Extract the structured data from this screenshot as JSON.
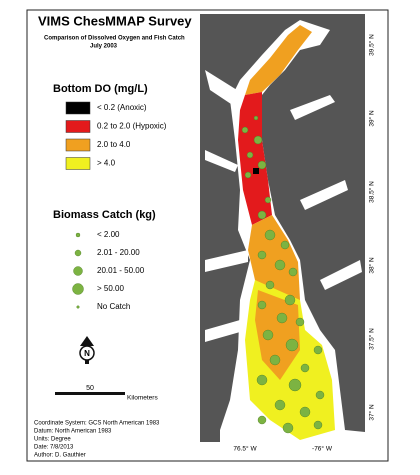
{
  "header": {
    "title": "VIMS ChesMMAP Survey",
    "subtitle": [
      "Comparison of Dissolved Oxygen and Fish Catch",
      "July 2003"
    ]
  },
  "do_legend": {
    "title": "Bottom DO (mg/L)",
    "items": [
      {
        "label": "< 0.2 (Anoxic)",
        "color": "#000000"
      },
      {
        "label": "0.2 to 2.0 (Hypoxic)",
        "color": "#e31a1c"
      },
      {
        "label": "2.0 to 4.0",
        "color": "#f0a020"
      },
      {
        "label": "> 4.0",
        "color": "#f0f020"
      }
    ]
  },
  "catch_legend": {
    "title": "Biomass Catch (kg)",
    "color": "#7cb342",
    "items": [
      "< 2.00",
      "2.01 - 20.00",
      "20.01 - 50.00",
      "> 50.00",
      "No Catch"
    ]
  },
  "scale": {
    "label": "50",
    "unit": "Kilometers"
  },
  "north": "N",
  "footer": [
    "Coordinate System: GCS North American 1983",
    "Datum: North American 1983",
    "Units: Degree",
    "Date: 7/8/2013",
    "Author: D. Gauthier"
  ],
  "lat_labels": [
    "39.5° N",
    "39° N",
    "38.5° N",
    "38° N",
    "37.5° N",
    "37° N"
  ],
  "lon_labels": [
    "76.5° W",
    "-76° W"
  ]
}
